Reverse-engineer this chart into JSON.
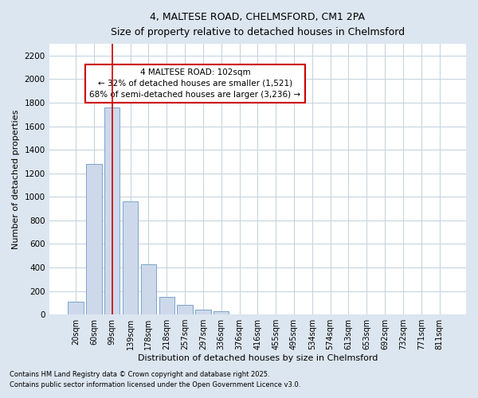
{
  "title_line1": "4, MALTESE ROAD, CHELMSFORD, CM1 2PA",
  "title_line2": "Size of property relative to detached houses in Chelmsford",
  "xlabel": "Distribution of detached houses by size in Chelmsford",
  "ylabel": "Number of detached properties",
  "categories": [
    "20sqm",
    "60sqm",
    "99sqm",
    "139sqm",
    "178sqm",
    "218sqm",
    "257sqm",
    "297sqm",
    "336sqm",
    "376sqm",
    "416sqm",
    "455sqm",
    "495sqm",
    "534sqm",
    "574sqm",
    "613sqm",
    "653sqm",
    "692sqm",
    "732sqm",
    "771sqm",
    "811sqm"
  ],
  "values": [
    110,
    1280,
    1760,
    960,
    430,
    150,
    80,
    40,
    25,
    0,
    0,
    0,
    0,
    0,
    0,
    0,
    0,
    0,
    0,
    0,
    0
  ],
  "bar_color": "#cdd9ea",
  "bar_edge_color": "#7ba3cc",
  "grid_color": "#c8d4e0",
  "red_line_index": 2,
  "annotation_text": "4 MALTESE ROAD: 102sqm\n← 32% of detached houses are smaller (1,521)\n68% of semi-detached houses are larger (3,236) →",
  "annotation_box_facecolor": "#ffffff",
  "annotation_box_edgecolor": "#cc0000",
  "red_line_color": "#cc0000",
  "ylim": [
    0,
    2300
  ],
  "yticks": [
    0,
    200,
    400,
    600,
    800,
    1000,
    1200,
    1400,
    1600,
    1800,
    2000,
    2200
  ],
  "footer_line1": "Contains HM Land Registry data © Crown copyright and database right 2025.",
  "footer_line2": "Contains public sector information licensed under the Open Government Licence v3.0.",
  "fig_facecolor": "#dce6f0",
  "axes_facecolor": "#ffffff"
}
